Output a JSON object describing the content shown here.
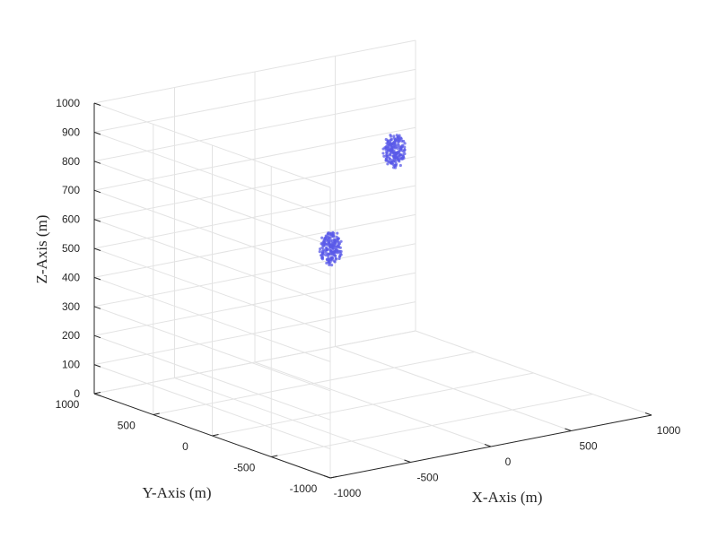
{
  "chart_data": {
    "type": "scatter",
    "view": "3d",
    "xlabel": "X-Axis (m)",
    "ylabel": "Y-Axis (m)",
    "zlabel": "Z-Axis (m)",
    "xlim": [
      -1000,
      1000
    ],
    "ylim": [
      -1000,
      1000
    ],
    "zlim": [
      0,
      1000
    ],
    "xticks": [
      -1000,
      -500,
      0,
      500,
      1000
    ],
    "yticks": [
      -1000,
      -500,
      0,
      500,
      1000
    ],
    "zticks": [
      0,
      100,
      200,
      300,
      400,
      500,
      600,
      700,
      800,
      900,
      1000
    ],
    "grid": true,
    "box": true,
    "series": [
      {
        "color": "#5a5ae8",
        "center": [
          -700,
          -600,
          700
        ],
        "radius": 60,
        "points": 180
      },
      {
        "color": "#5a5ae8",
        "center": [
          650,
          700,
          700
        ],
        "radius": 60,
        "points": 180
      }
    ]
  }
}
